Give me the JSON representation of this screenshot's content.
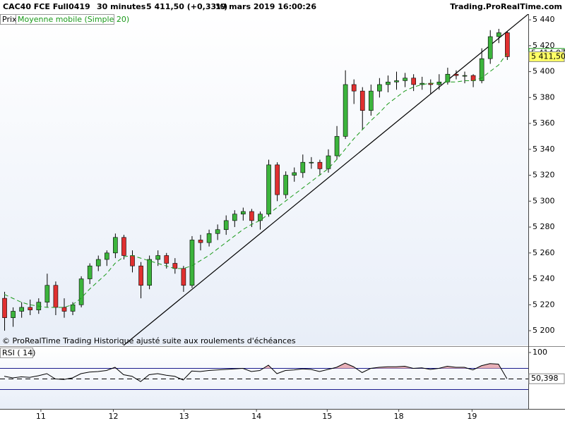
{
  "chart_data": [
    {
      "type": "candlestick",
      "title": "CAC40 FCE Full0419",
      "interval": "30 minutes",
      "last_change": "5 411,50 (+0,33%)",
      "datetime": "19 mars 2019 16:00:26",
      "source": "Trading.ProRealTime.com",
      "price_label": "Prix",
      "note": "© ProRealTime Trading  Historique ajusté suite aux roulements d'échéances",
      "up_color": "#3cb43c",
      "down_color": "#e03030",
      "candles": [
        [
          5225,
          5230,
          5200,
          5210
        ],
        [
          5210,
          5218,
          5203,
          5215
        ],
        [
          5215,
          5222,
          5210,
          5218
        ],
        [
          5218,
          5224,
          5212,
          5216
        ],
        [
          5216,
          5225,
          5213,
          5222
        ],
        [
          5222,
          5244,
          5218,
          5235
        ],
        [
          5235,
          5238,
          5212,
          5218
        ],
        [
          5218,
          5225,
          5210,
          5215
        ],
        [
          5215,
          5222,
          5212,
          5220
        ],
        [
          5220,
          5242,
          5218,
          5240
        ],
        [
          5240,
          5252,
          5236,
          5250
        ],
        [
          5250,
          5258,
          5246,
          5255
        ],
        [
          5255,
          5262,
          5250,
          5260
        ],
        [
          5260,
          5275,
          5256,
          5272
        ],
        [
          5272,
          5274,
          5255,
          5258
        ],
        [
          5258,
          5262,
          5245,
          5250
        ],
        [
          5250,
          5253,
          5225,
          5235
        ],
        [
          5235,
          5258,
          5232,
          5255
        ],
        [
          5255,
          5262,
          5250,
          5258
        ],
        [
          5258,
          5260,
          5248,
          5252
        ],
        [
          5252,
          5256,
          5244,
          5248
        ],
        [
          5248,
          5250,
          5230,
          5235
        ],
        [
          5235,
          5273,
          5233,
          5270
        ],
        [
          5270,
          5274,
          5262,
          5268
        ],
        [
          5268,
          5278,
          5265,
          5275
        ],
        [
          5275,
          5282,
          5270,
          5278
        ],
        [
          5278,
          5289,
          5274,
          5285
        ],
        [
          5285,
          5293,
          5280,
          5290
        ],
        [
          5290,
          5295,
          5285,
          5292
        ],
        [
          5292,
          5294,
          5280,
          5285
        ],
        [
          5285,
          5292,
          5278,
          5290
        ],
        [
          5290,
          5332,
          5288,
          5328
        ],
        [
          5328,
          5330,
          5300,
          5305
        ],
        [
          5305,
          5323,
          5302,
          5320
        ],
        [
          5320,
          5326,
          5315,
          5322
        ],
        [
          5322,
          5336,
          5318,
          5330
        ],
        [
          5330,
          5334,
          5325,
          5330
        ],
        [
          5330,
          5332,
          5320,
          5325
        ],
        [
          5325,
          5340,
          5322,
          5335
        ],
        [
          5335,
          5358,
          5332,
          5350
        ],
        [
          5350,
          5401,
          5348,
          5390
        ],
        [
          5390,
          5394,
          5375,
          5385
        ],
        [
          5385,
          5388,
          5355,
          5370
        ],
        [
          5370,
          5390,
          5366,
          5385
        ],
        [
          5385,
          5395,
          5380,
          5390
        ],
        [
          5390,
          5397,
          5384,
          5392
        ],
        [
          5392,
          5400,
          5386,
          5393
        ],
        [
          5393,
          5399,
          5388,
          5395
        ],
        [
          5395,
          5398,
          5385,
          5390
        ],
        [
          5390,
          5396,
          5386,
          5391
        ],
        [
          5391,
          5394,
          5383,
          5390
        ],
        [
          5390,
          5398,
          5386,
          5392
        ],
        [
          5392,
          5403,
          5390,
          5398
        ],
        [
          5398,
          5401,
          5394,
          5397
        ],
        [
          5397,
          5400,
          5391,
          5397
        ],
        [
          5397,
          5398,
          5388,
          5393
        ],
        [
          5393,
          5418,
          5391,
          5410
        ],
        [
          5410,
          5432,
          5406,
          5427
        ],
        [
          5427,
          5433,
          5422,
          5430
        ],
        [
          5430,
          5431,
          5409,
          5411.5
        ]
      ],
      "series": [
        {
          "name": "Moyenne mobile (Simple 20)",
          "color": "#1a9a1a",
          "values": [
            5228,
            5225,
            5222,
            5220,
            5219,
            5218,
            5218,
            5218,
            5220,
            5225,
            5232,
            5238,
            5244,
            5252,
            5257,
            5258,
            5256,
            5254,
            5252,
            5250,
            5248,
            5248,
            5250,
            5254,
            5258,
            5263,
            5268,
            5273,
            5278,
            5282,
            5285,
            5290,
            5295,
            5300,
            5305,
            5310,
            5315,
            5320,
            5325,
            5332,
            5340,
            5348,
            5355,
            5362,
            5368,
            5375,
            5380,
            5385,
            5388,
            5390,
            5391,
            5391,
            5392,
            5392,
            5393,
            5393,
            5395,
            5400,
            5405,
            5414.07
          ]
        }
      ],
      "trendline": {
        "x": [
          14,
          61.5
        ],
        "values": [
          5188.6,
          5444.4
        ]
      },
      "ma_last": {
        "value": 5414.07,
        "label": "5 414,07"
      },
      "close_last": {
        "value": 5411.5,
        "label": "5 411,50"
      },
      "xlim": [
        -0.5,
        61.5
      ],
      "xticks": [
        {
          "value": 4.3,
          "label": "11"
        },
        {
          "value": 12.8,
          "label": "12"
        },
        {
          "value": 21.1,
          "label": "13"
        },
        {
          "value": 29.6,
          "label": "14"
        },
        {
          "value": 37.9,
          "label": "15"
        },
        {
          "value": 46.3,
          "label": "18"
        },
        {
          "value": 54.9,
          "label": "19"
        }
      ],
      "ylim": [
        5188.6,
        5444.4
      ],
      "yticks": [
        {
          "value": 5200,
          "label": "5 200"
        },
        {
          "value": 5220,
          "label": "5 220"
        },
        {
          "value": 5240,
          "label": "5 240"
        },
        {
          "value": 5260,
          "label": "5 260"
        },
        {
          "value": 5280,
          "label": "5 280"
        },
        {
          "value": 5300,
          "label": "5 300"
        },
        {
          "value": 5320,
          "label": "5 320"
        },
        {
          "value": 5340,
          "label": "5 340"
        },
        {
          "value": 5360,
          "label": "5 360"
        },
        {
          "value": 5380,
          "label": "5 380"
        },
        {
          "value": 5400,
          "label": "5 400"
        },
        {
          "value": 5420,
          "label": "5 420"
        },
        {
          "value": 5440,
          "label": "5 440"
        }
      ]
    },
    {
      "type": "line",
      "title": "RSI ( 14)",
      "series": [
        {
          "name": "RSI",
          "color": "#000000",
          "values": [
            55,
            52,
            54,
            53,
            56,
            60,
            50,
            49,
            52,
            60,
            63,
            64,
            66,
            72,
            58,
            55,
            45,
            58,
            60,
            57,
            55,
            48,
            65,
            64,
            66,
            67,
            68,
            69,
            70,
            64,
            66,
            76,
            60,
            66,
            67,
            69,
            68,
            64,
            68,
            72,
            80,
            73,
            62,
            70,
            72,
            73,
            73,
            74,
            70,
            71,
            68,
            70,
            74,
            72,
            72,
            67,
            75,
            79,
            78,
            50.398
          ]
        }
      ],
      "last": {
        "value": 50.398,
        "label": "50,398"
      },
      "levels": [
        70,
        50,
        30
      ],
      "level_color": "#1a1a8c",
      "overbought_fill": "#e8b0b8",
      "xlim": [
        -0.5,
        61.5
      ],
      "ylim": [
        0,
        100
      ],
      "yticks": [
        100
      ]
    }
  ]
}
